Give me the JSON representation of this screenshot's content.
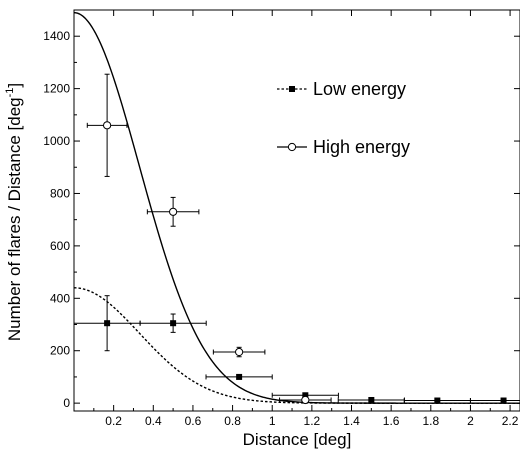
{
  "chart_data": {
    "type": "scatter",
    "xlabel": "Distance [deg]",
    "ylabel": "Number of flares / Distance [deg",
    "ylabel_sup": "-1",
    "ylabel_close": "]",
    "xlim": [
      0,
      2.25
    ],
    "ylim": [
      -30,
      1500
    ],
    "x_ticks": [
      0.2,
      0.4,
      0.6,
      0.8,
      1,
      1.2,
      1.4,
      1.6,
      1.8,
      2,
      2.2
    ],
    "x_tick_labels": [
      "0.2",
      "0.4",
      "0.6",
      "0.8",
      "1",
      "1.2",
      "1.4",
      "1.6",
      "1.8",
      "2",
      "2.2"
    ],
    "y_ticks": [
      0,
      200,
      400,
      600,
      800,
      1000,
      1200,
      1400
    ],
    "y_tick_labels": [
      "0",
      "200",
      "400",
      "600",
      "800",
      "1000",
      "1200",
      "1400"
    ],
    "grid": false,
    "legend_position": "top-right",
    "series": [
      {
        "name": "Low energy",
        "marker": "filled-square",
        "fit_line": "dashed",
        "fit": {
          "amplitude": 440,
          "sigma": 0.33
        },
        "points": [
          {
            "x": 0.167,
            "y": 305,
            "xerr": 0.167,
            "yerr": 105
          },
          {
            "x": 0.5,
            "y": 305,
            "xerr": 0.167,
            "yerr": 35
          },
          {
            "x": 0.833,
            "y": 100,
            "xerr": 0.167,
            "yerr": 8
          },
          {
            "x": 1.167,
            "y": 30,
            "xerr": 0.167,
            "yerr": 5
          },
          {
            "x": 1.5,
            "y": 12,
            "xerr": 0.167,
            "yerr": 3
          },
          {
            "x": 1.833,
            "y": 10,
            "xerr": 0.167,
            "yerr": 3
          },
          {
            "x": 2.167,
            "y": 10,
            "xerr": 0.167,
            "yerr": 3
          }
        ]
      },
      {
        "name": "High energy",
        "marker": "open-circle",
        "fit_line": "solid",
        "fit": {
          "amplitude": 1490,
          "sigma": 0.33
        },
        "points": [
          {
            "x": 0.167,
            "y": 1060,
            "xerr": 0.1,
            "yerr": 195
          },
          {
            "x": 0.5,
            "y": 730,
            "xerr": 0.13,
            "yerr": 55
          },
          {
            "x": 0.833,
            "y": 195,
            "xerr": 0.13,
            "yerr": 18
          },
          {
            "x": 1.167,
            "y": 12,
            "xerr": 0.13,
            "yerr": 5
          }
        ]
      }
    ]
  }
}
